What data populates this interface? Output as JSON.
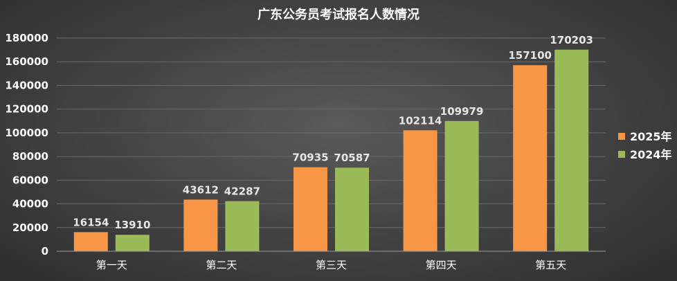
{
  "chart_data": {
    "type": "bar",
    "title": "广东公务员考试报名人数情况",
    "categories": [
      "第一天",
      "第二天",
      "第三天",
      "第四天",
      "第五天"
    ],
    "series": [
      {
        "name": "2025年",
        "color": "#f79646",
        "values": [
          16154,
          43612,
          70935,
          102114,
          157100
        ]
      },
      {
        "name": "2024年",
        "color": "#9bbb59",
        "values": [
          13910,
          42287,
          70587,
          109979,
          170203
        ]
      }
    ],
    "ylim": [
      0,
      180000
    ],
    "yticks": [
      0,
      20000,
      40000,
      60000,
      80000,
      100000,
      120000,
      140000,
      160000,
      180000
    ],
    "grid": true,
    "legend_position": "right",
    "xlabel": "",
    "ylabel": ""
  }
}
